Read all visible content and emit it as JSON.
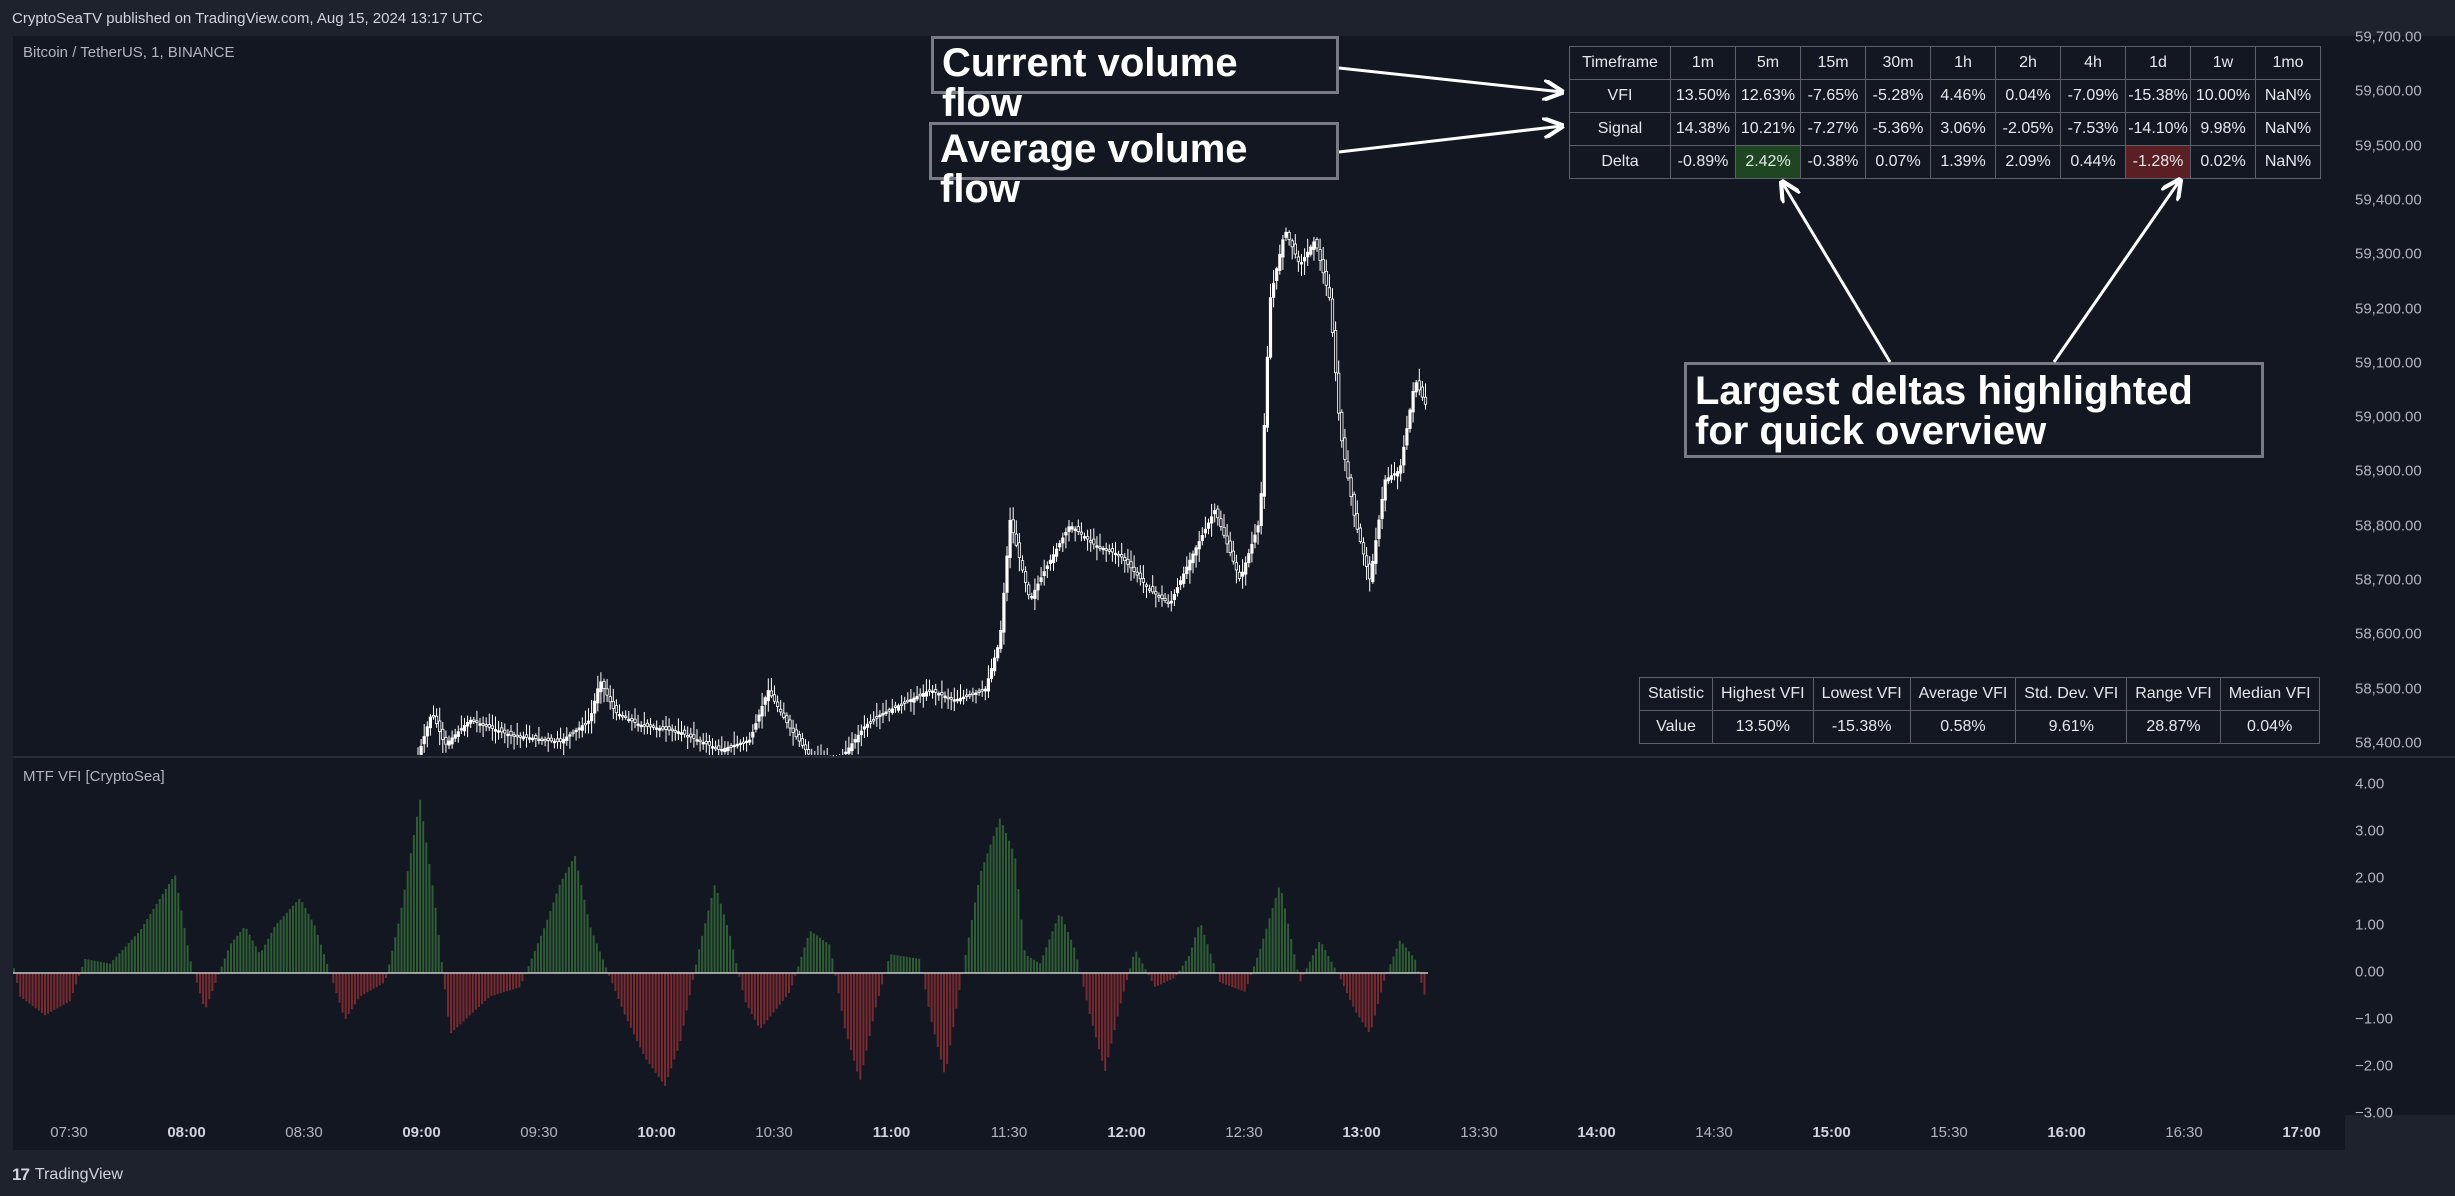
{
  "header": {
    "published_text": "CryptoSeaTV published on TradingView.com, Aug 15, 2024 13:17 UTC"
  },
  "chart": {
    "symbol_label": "Bitcoin / TetherUS, 1, BINANCE",
    "indicator_label": "MTF VFI [CryptoSea]",
    "price_axis": [
      "59,700.00",
      "59,600.00",
      "59,500.00",
      "59,400.00",
      "59,300.00",
      "59,200.00",
      "59,100.00",
      "59,000.00",
      "58,900.00",
      "58,800.00",
      "58,700.00",
      "58,600.00",
      "58,500.00",
      "58,400.00"
    ],
    "osc_axis": [
      "4.00",
      "3.00",
      "2.00",
      "1.00",
      "0.00",
      "−1.00",
      "−2.00",
      "−3.00"
    ],
    "time_axis": [
      {
        "label": "07:30",
        "bold": false
      },
      {
        "label": "08:00",
        "bold": true
      },
      {
        "label": "08:30",
        "bold": false
      },
      {
        "label": "09:00",
        "bold": true
      },
      {
        "label": "09:30",
        "bold": false
      },
      {
        "label": "10:00",
        "bold": true
      },
      {
        "label": "10:30",
        "bold": false
      },
      {
        "label": "11:00",
        "bold": true
      },
      {
        "label": "11:30",
        "bold": false
      },
      {
        "label": "12:00",
        "bold": true
      },
      {
        "label": "12:30",
        "bold": false
      },
      {
        "label": "13:00",
        "bold": true
      },
      {
        "label": "13:30",
        "bold": false
      },
      {
        "label": "14:00",
        "bold": true
      },
      {
        "label": "14:30",
        "bold": false
      },
      {
        "label": "15:00",
        "bold": true
      },
      {
        "label": "15:30",
        "bold": false
      },
      {
        "label": "16:00",
        "bold": true
      },
      {
        "label": "16:30",
        "bold": false
      },
      {
        "label": "17:00",
        "bold": true
      }
    ],
    "colors": {
      "background": "#131722",
      "candle": "#ffffff",
      "osc_positive": "#2e5e34",
      "osc_negative": "#7a2a2e",
      "zero_line": "#c8c8c8"
    }
  },
  "mtf_table": {
    "header": [
      "Timeframe",
      "1m",
      "5m",
      "15m",
      "30m",
      "1h",
      "2h",
      "4h",
      "1d",
      "1w",
      "1mo"
    ],
    "rows": [
      {
        "label": "VFI",
        "cells": [
          "13.50%",
          "12.63%",
          "-7.65%",
          "-5.28%",
          "4.46%",
          "0.04%",
          "-7.09%",
          "-15.38%",
          "10.00%",
          "NaN%"
        ]
      },
      {
        "label": "Signal",
        "cells": [
          "14.38%",
          "10.21%",
          "-7.27%",
          "-5.36%",
          "3.06%",
          "-2.05%",
          "-7.53%",
          "-14.10%",
          "9.98%",
          "NaN%"
        ]
      },
      {
        "label": "Delta",
        "cells": [
          "-0.89%",
          "2.42%",
          "-0.38%",
          "0.07%",
          "1.39%",
          "2.09%",
          "0.44%",
          "-1.28%",
          "0.02%",
          "NaN%"
        ]
      }
    ],
    "highlight_colors": {
      "largest_positive": "#1e4620",
      "largest_negative": "#5a1f22"
    }
  },
  "stats_table": {
    "header": [
      "Statistic",
      "Highest VFI",
      "Lowest VFI",
      "Average VFI",
      "Std. Dev. VFI",
      "Range VFI",
      "Median VFI"
    ],
    "row": [
      "Value",
      "13.50%",
      "-15.38%",
      "0.58%",
      "9.61%",
      "28.87%",
      "0.04%"
    ]
  },
  "callouts": {
    "current": "Current volume flow",
    "average": "Average volume flow",
    "deltas": "Largest deltas highlighted for quick overview"
  },
  "footer": {
    "logo": "17",
    "brand": "TradingView"
  }
}
